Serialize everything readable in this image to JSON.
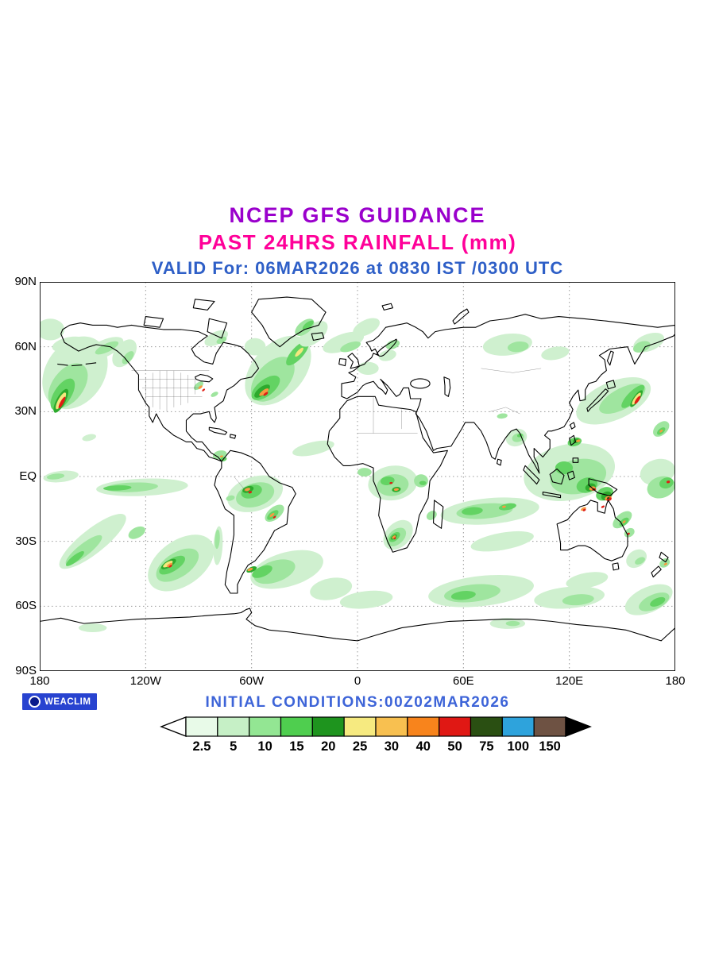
{
  "header": {
    "title": "NCEP GFS GUIDANCE",
    "subtitle": "PAST 24HRS RAINFALL (mm)",
    "valid_line": "VALID For: 06MAR2026 at 0830 IST /0300 UTC",
    "title_color": "#9A00CC",
    "subtitle_color": "#FF0099",
    "valid_color": "#2E5FC7"
  },
  "map": {
    "lat_labels": [
      "90N",
      "60N",
      "30N",
      "EQ",
      "30S",
      "60S",
      "90S"
    ],
    "lon_labels": [
      "180",
      "120W",
      "60W",
      "0",
      "60E",
      "120E",
      "180"
    ]
  },
  "footer": {
    "initial_conditions": "INITIAL CONDITIONS:00Z02MAR2026",
    "initial_color": "#3D64D8",
    "brand": "WEACLIM",
    "badge_bg": "#2843D0"
  },
  "legend": {
    "values": [
      "2.5",
      "5",
      "10",
      "15",
      "20",
      "25",
      "30",
      "40",
      "50",
      "75",
      "100",
      "150"
    ],
    "colors": [
      "#E8FAE8",
      "#C6F0C6",
      "#93E693",
      "#4FCE4F",
      "#1E941E",
      "#F6EA80",
      "#F8C050",
      "#F8841C",
      "#E01814",
      "#2A4F12",
      "#2EA3DC",
      "#6E5243"
    ],
    "left_arrow_color": "#FFFFFF",
    "right_arrow_color": "#000000"
  }
}
